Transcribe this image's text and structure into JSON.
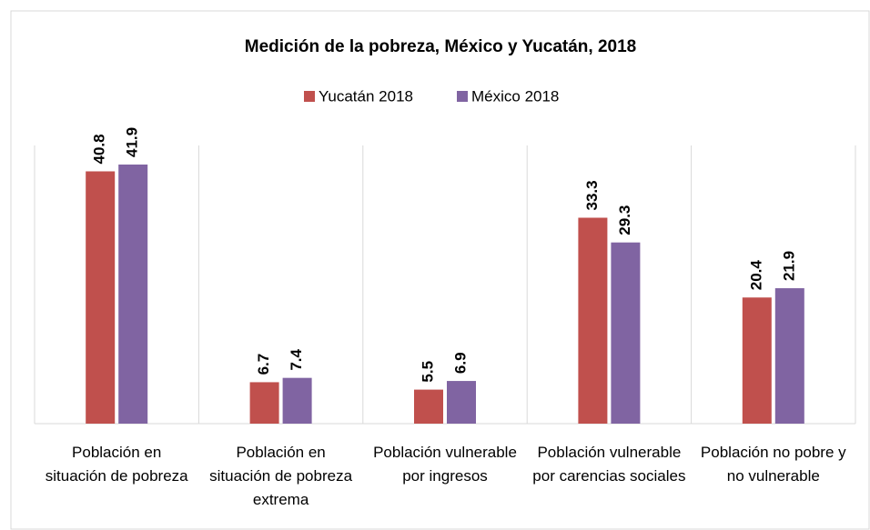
{
  "chart_data": {
    "type": "bar",
    "title": "Medición de la pobreza, México y Yucatán, 2018",
    "categories": [
      "Población en situación de pobreza",
      "Población en situación de pobreza extrema",
      "Población vulnerable por ingresos",
      "Población vulnerable por carencias sociales",
      "Población no pobre y no vulnerable"
    ],
    "series": [
      {
        "name": "Yucatán 2018",
        "color": "#c0504d",
        "values": [
          40.8,
          6.7,
          5.5,
          33.3,
          20.4
        ]
      },
      {
        "name": "México 2018",
        "color": "#8064a2",
        "values": [
          41.9,
          7.4,
          6.9,
          29.3,
          21.9
        ]
      }
    ],
    "legend": "top"
  }
}
